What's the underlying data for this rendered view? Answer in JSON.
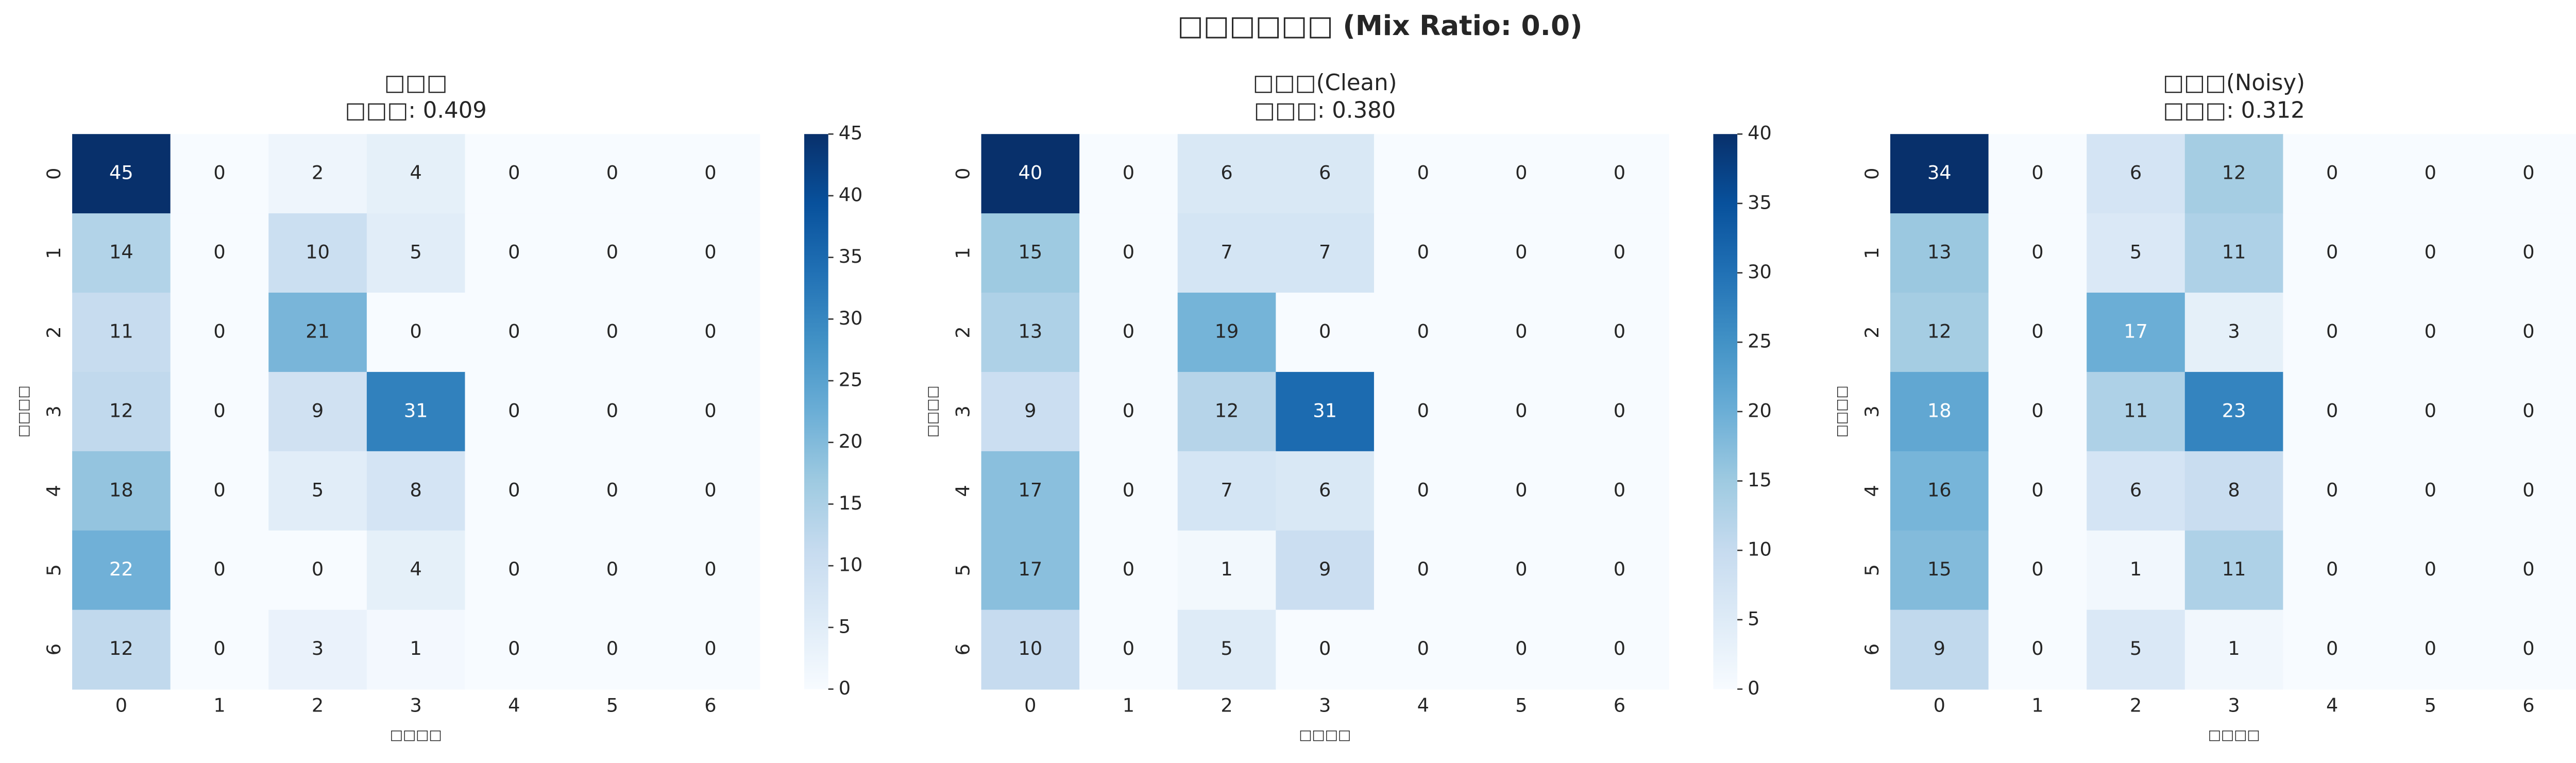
{
  "title": "□□□□□□ (Mix Ratio: 0.0)",
  "chart_data": [
    {
      "type": "heatmap",
      "title": "□□□",
      "subtitle": "□□□: 0.409",
      "xlabel": "□□□□",
      "ylabel": "□□□□",
      "x": [
        "0",
        "1",
        "2",
        "3",
        "4",
        "5",
        "6"
      ],
      "y": [
        "0",
        "1",
        "2",
        "3",
        "4",
        "5",
        "6"
      ],
      "colormap": "Blues",
      "values": [
        [
          45,
          0,
          2,
          4,
          0,
          0,
          0
        ],
        [
          14,
          0,
          10,
          5,
          0,
          0,
          0
        ],
        [
          11,
          0,
          21,
          0,
          0,
          0,
          0
        ],
        [
          12,
          0,
          9,
          31,
          0,
          0,
          0
        ],
        [
          18,
          0,
          5,
          8,
          0,
          0,
          0
        ],
        [
          22,
          0,
          0,
          4,
          0,
          0,
          0
        ],
        [
          12,
          0,
          3,
          1,
          0,
          0,
          0
        ]
      ],
      "clim": [
        0,
        45
      ],
      "cticks": [
        0,
        5,
        10,
        15,
        20,
        25,
        30,
        35,
        40,
        45
      ]
    },
    {
      "type": "heatmap",
      "title": "□□□(Clean)",
      "subtitle": "□□□: 0.380",
      "xlabel": "□□□□",
      "ylabel": "□□□□",
      "x": [
        "0",
        "1",
        "2",
        "3",
        "4",
        "5",
        "6"
      ],
      "y": [
        "0",
        "1",
        "2",
        "3",
        "4",
        "5",
        "6"
      ],
      "colormap": "Blues",
      "values": [
        [
          40,
          0,
          6,
          6,
          0,
          0,
          0
        ],
        [
          15,
          0,
          7,
          7,
          0,
          0,
          0
        ],
        [
          13,
          0,
          19,
          0,
          0,
          0,
          0
        ],
        [
          9,
          0,
          12,
          31,
          0,
          0,
          0
        ],
        [
          17,
          0,
          7,
          6,
          0,
          0,
          0
        ],
        [
          17,
          0,
          1,
          9,
          0,
          0,
          0
        ],
        [
          10,
          0,
          5,
          0,
          0,
          0,
          0
        ]
      ],
      "clim": [
        0,
        40
      ],
      "cticks": [
        0,
        5,
        10,
        15,
        20,
        25,
        30,
        35,
        40
      ]
    },
    {
      "type": "heatmap",
      "title": "□□□(Noisy)",
      "subtitle": "□□□: 0.312",
      "xlabel": "□□□□",
      "ylabel": "□□□□",
      "x": [
        "0",
        "1",
        "2",
        "3",
        "4",
        "5",
        "6"
      ],
      "y": [
        "0",
        "1",
        "2",
        "3",
        "4",
        "5",
        "6"
      ],
      "colormap": "Blues",
      "values": [
        [
          34,
          0,
          6,
          12,
          0,
          0,
          0
        ],
        [
          13,
          0,
          5,
          11,
          0,
          0,
          0
        ],
        [
          12,
          0,
          17,
          3,
          0,
          0,
          0
        ],
        [
          18,
          0,
          11,
          23,
          0,
          0,
          0
        ],
        [
          16,
          0,
          6,
          8,
          0,
          0,
          0
        ],
        [
          15,
          0,
          1,
          11,
          0,
          0,
          0
        ],
        [
          9,
          0,
          5,
          1,
          0,
          0,
          0
        ]
      ],
      "clim": [
        0,
        34
      ],
      "cticks": [
        0,
        5,
        10,
        15,
        20,
        25,
        30
      ]
    }
  ]
}
